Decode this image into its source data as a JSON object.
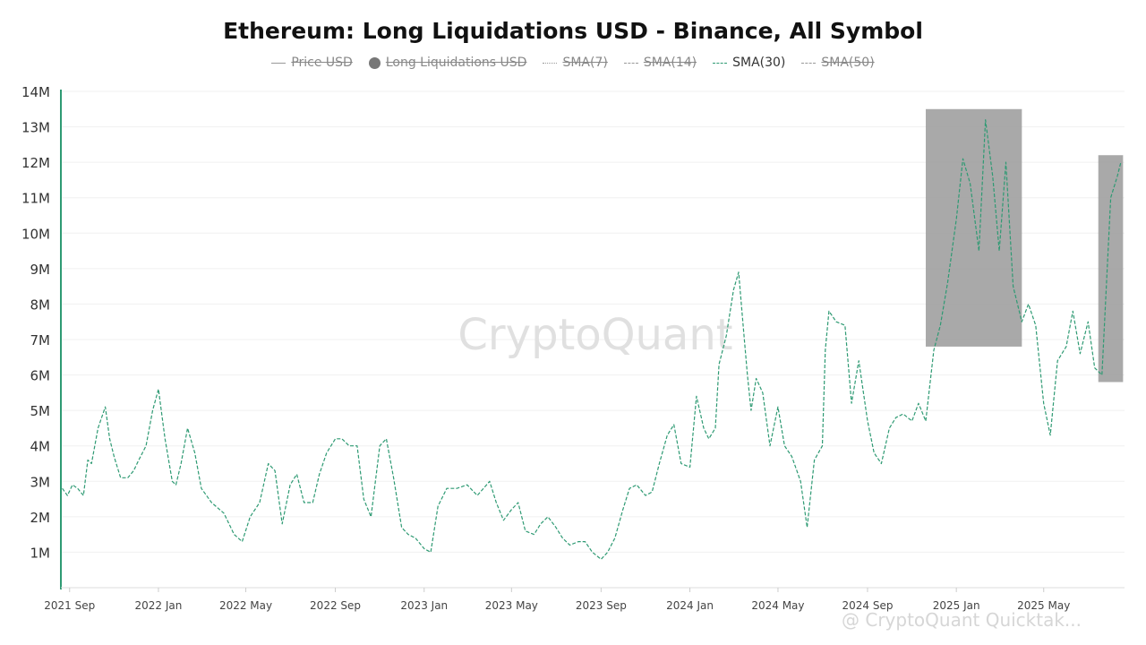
{
  "chart_data": {
    "type": "line",
    "title": "Ethereum: Long Liquidations USD - Binance, All Symbol",
    "legend": [
      {
        "label": "Price USD",
        "marker": "line",
        "state": "disabled"
      },
      {
        "label": "Long Liquidations USD",
        "marker": "dot",
        "state": "disabled"
      },
      {
        "label": "SMA(7)",
        "marker": "dotted",
        "state": "disabled"
      },
      {
        "label": "SMA(14)",
        "marker": "dashed",
        "state": "disabled"
      },
      {
        "label": "SMA(30)",
        "marker": "dashed-green",
        "state": "enabled"
      },
      {
        "label": "SMA(50)",
        "marker": "dashed",
        "state": "disabled"
      }
    ],
    "legend_position": "top-center",
    "x_axis_type": "date",
    "xlim": [
      "2021-08-20",
      "2025-08-20"
    ],
    "ylim": [
      0,
      14000000
    ],
    "y_ticks": [
      1000000,
      2000000,
      3000000,
      4000000,
      5000000,
      6000000,
      7000000,
      8000000,
      9000000,
      10000000,
      11000000,
      12000000,
      13000000,
      14000000
    ],
    "y_tick_labels": [
      "1M",
      "2M",
      "3M",
      "4M",
      "5M",
      "6M",
      "7M",
      "8M",
      "9M",
      "10M",
      "11M",
      "12M",
      "13M",
      "14M"
    ],
    "x_ticks": [
      "2021-09-01",
      "2022-01-01",
      "2022-05-01",
      "2022-09-01",
      "2023-01-01",
      "2023-05-01",
      "2023-09-01",
      "2024-01-01",
      "2024-05-01",
      "2024-09-01",
      "2025-01-01",
      "2025-05-01"
    ],
    "x_tick_labels": [
      "2021 Sep",
      "2022 Jan",
      "2022 May",
      "2022 Sep",
      "2023 Jan",
      "2023 May",
      "2023 Sep",
      "2024 Jan",
      "2024 May",
      "2024 Sep",
      "2025 Jan",
      "2025 May"
    ],
    "grid": "horizontal",
    "series": [
      {
        "name": "SMA(30)",
        "color": "#2e9a73",
        "x": [
          "2021-08-22",
          "2021-08-29",
          "2021-09-05",
          "2021-09-12",
          "2021-09-20",
          "2021-09-26",
          "2021-10-01",
          "2021-10-10",
          "2021-10-20",
          "2021-10-26",
          "2021-11-01",
          "2021-11-10",
          "2021-11-20",
          "2021-11-28",
          "2021-12-05",
          "2021-12-15",
          "2021-12-24",
          "2022-01-01",
          "2022-01-10",
          "2022-01-20",
          "2022-01-25",
          "2022-02-01",
          "2022-02-10",
          "2022-02-20",
          "2022-03-01",
          "2022-03-15",
          "2022-04-01",
          "2022-04-15",
          "2022-04-26",
          "2022-05-07",
          "2022-05-20",
          "2022-06-01",
          "2022-06-10",
          "2022-06-20",
          "2022-07-01",
          "2022-07-10",
          "2022-07-20",
          "2022-08-01",
          "2022-08-10",
          "2022-08-20",
          "2022-09-01",
          "2022-09-10",
          "2022-09-20",
          "2022-10-01",
          "2022-10-10",
          "2022-10-20",
          "2022-11-01",
          "2022-11-10",
          "2022-11-20",
          "2022-12-01",
          "2022-12-10",
          "2022-12-20",
          "2023-01-01",
          "2023-01-10",
          "2023-01-20",
          "2023-02-01",
          "2023-02-15",
          "2023-03-01",
          "2023-03-15",
          "2023-04-01",
          "2023-04-10",
          "2023-04-20",
          "2023-05-01",
          "2023-05-10",
          "2023-05-20",
          "2023-06-01",
          "2023-06-10",
          "2023-06-20",
          "2023-07-01",
          "2023-07-10",
          "2023-07-20",
          "2023-08-01",
          "2023-08-10",
          "2023-08-20",
          "2023-09-01",
          "2023-09-10",
          "2023-09-20",
          "2023-10-01",
          "2023-10-10",
          "2023-10-20",
          "2023-11-01",
          "2023-11-10",
          "2023-11-20",
          "2023-12-01",
          "2023-12-10",
          "2023-12-20",
          "2024-01-01",
          "2024-01-10",
          "2024-01-20",
          "2024-01-27",
          "2024-02-05",
          "2024-02-10",
          "2024-02-20",
          "2024-03-01",
          "2024-03-08",
          "2024-03-15",
          "2024-03-20",
          "2024-03-25",
          "2024-04-01",
          "2024-04-10",
          "2024-04-20",
          "2024-05-01",
          "2024-05-10",
          "2024-05-20",
          "2024-06-01",
          "2024-06-10",
          "2024-06-20",
          "2024-07-01",
          "2024-07-05",
          "2024-07-10",
          "2024-07-20",
          "2024-08-01",
          "2024-08-10",
          "2024-08-20",
          "2024-09-01",
          "2024-09-10",
          "2024-09-20",
          "2024-10-01",
          "2024-10-10",
          "2024-10-20",
          "2024-11-01",
          "2024-11-10",
          "2024-11-20",
          "2024-12-01",
          "2024-12-10",
          "2024-12-20",
          "2025-01-01",
          "2025-01-10",
          "2025-01-20",
          "2025-02-01",
          "2025-02-10",
          "2025-02-20",
          "2025-03-01",
          "2025-03-10",
          "2025-03-20",
          "2025-04-01",
          "2025-04-10",
          "2025-04-20",
          "2025-05-01",
          "2025-05-10",
          "2025-05-20",
          "2025-06-01",
          "2025-06-10",
          "2025-06-20",
          "2025-07-01",
          "2025-07-10",
          "2025-07-20",
          "2025-08-01",
          "2025-08-10",
          "2025-08-15"
        ],
        "values": [
          2800000,
          2600000,
          2900000,
          2800000,
          2600000,
          3600000,
          3500000,
          4500000,
          5100000,
          4200000,
          3700000,
          3100000,
          3100000,
          3300000,
          3600000,
          4000000,
          5000000,
          5600000,
          4200000,
          3000000,
          2900000,
          3500000,
          4500000,
          3800000,
          2800000,
          2400000,
          2100000,
          1500000,
          1300000,
          2000000,
          2400000,
          3500000,
          3300000,
          1800000,
          2900000,
          3200000,
          2400000,
          2400000,
          3200000,
          3800000,
          4200000,
          4200000,
          4000000,
          4000000,
          2500000,
          2000000,
          4000000,
          4200000,
          3100000,
          1700000,
          1500000,
          1400000,
          1100000,
          1000000,
          2300000,
          2800000,
          2800000,
          2900000,
          2600000,
          3000000,
          2400000,
          1900000,
          2200000,
          2400000,
          1600000,
          1500000,
          1800000,
          2000000,
          1700000,
          1400000,
          1200000,
          1300000,
          1300000,
          1000000,
          800000,
          1000000,
          1400000,
          2200000,
          2800000,
          2900000,
          2600000,
          2700000,
          3500000,
          4300000,
          4600000,
          3500000,
          3400000,
          5400000,
          4500000,
          4200000,
          4500000,
          6300000,
          7100000,
          8400000,
          8900000,
          7200000,
          6000000,
          5000000,
          5900000,
          5500000,
          4000000,
          5100000,
          4000000,
          3700000,
          3000000,
          1700000,
          3600000,
          4000000,
          6700000,
          7800000,
          7500000,
          7400000,
          5200000,
          6400000,
          4700000,
          3800000,
          3500000,
          4500000,
          4800000,
          4900000,
          4700000,
          5200000,
          4700000,
          6700000,
          7400000,
          8600000,
          10400000,
          12100000,
          11400000,
          9500000,
          13200000,
          11600000,
          9500000,
          12000000,
          8500000,
          7500000,
          8000000,
          7400000,
          5200000,
          4300000,
          6400000,
          6800000,
          7800000,
          6600000,
          7500000,
          6200000,
          6000000,
          11000000,
          11600000,
          12000000
        ]
      }
    ],
    "annotations": [
      {
        "type": "rect",
        "x_start": "2024-11-20",
        "x_end": "2025-04-01",
        "y_start": 6800000,
        "y_end": 13500000,
        "color": "#a0a0a0"
      },
      {
        "type": "rect",
        "x_start": "2025-07-15",
        "x_end": "2025-08-18",
        "y_start": 5800000,
        "y_end": 12200000,
        "color": "#a0a0a0"
      }
    ]
  },
  "watermark": {
    "center_text": "CryptoQuant",
    "bottom_text": "@ CryptoQuant Quicktak..."
  }
}
